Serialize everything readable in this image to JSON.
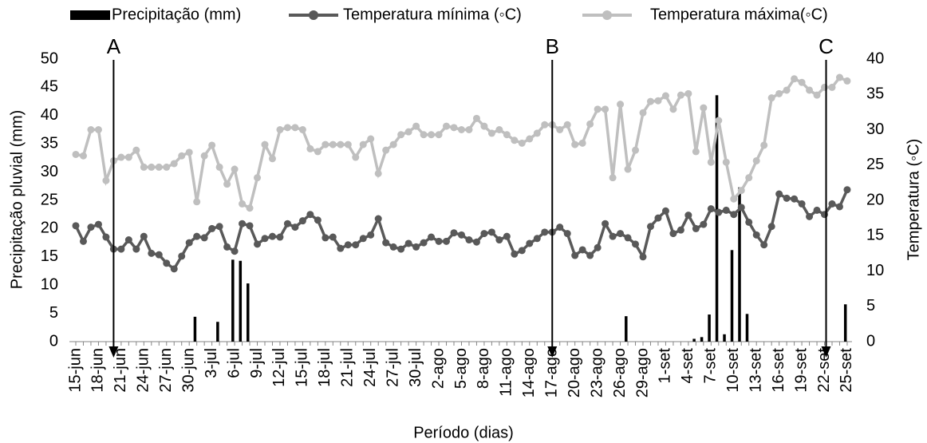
{
  "chart_data": {
    "type": "combo",
    "x_label": "Período  (dias)",
    "y_label": "Precipitação pluvial  (mm)",
    "y2_label": "Temperatura  (◦C)",
    "annotations": [
      "A",
      "B",
      "C"
    ],
    "categories": [
      "15-jun",
      null,
      null,
      "18-jun",
      null,
      null,
      "21-jun",
      null,
      null,
      "24-jun",
      null,
      null,
      "27-jun",
      null,
      null,
      "30-jun",
      null,
      null,
      "3-jul",
      null,
      null,
      "6-jul",
      null,
      null,
      "9-jul",
      null,
      null,
      "12-jul",
      null,
      null,
      "15-jul",
      null,
      null,
      "18-jul",
      null,
      null,
      "21-jul",
      null,
      null,
      "24-jul",
      null,
      null,
      "27-jul",
      null,
      null,
      "30-jul",
      null,
      null,
      "2-ago",
      null,
      null,
      "5-ago",
      null,
      null,
      "8-ago",
      null,
      null,
      "11-ago",
      null,
      null,
      "14-ago",
      null,
      null,
      "17-ago",
      null,
      null,
      "20-ago",
      null,
      null,
      "23-ago",
      null,
      null,
      "26-ago",
      null,
      null,
      "29-ago",
      null,
      null,
      "1-set",
      null,
      null,
      "4-set",
      null,
      null,
      "7-set",
      null,
      null,
      "10-set",
      null,
      null,
      "13-set",
      null,
      null,
      "16-set",
      null,
      null,
      "19-set",
      null,
      null,
      "22-set",
      null,
      null,
      "25-set"
    ],
    "ylim": [
      0,
      50
    ],
    "yticks": [
      0,
      5,
      10,
      15,
      20,
      25,
      30,
      35,
      40,
      45,
      50
    ],
    "y2lim": [
      0,
      40
    ],
    "y2ticks": [
      0,
      5,
      10,
      15,
      20,
      25,
      30,
      35,
      40
    ],
    "series": [
      {
        "name": "Precipitação (mm)",
        "type": "bar",
        "axis": "y",
        "color": "#000000",
        "values": [
          0,
          0,
          0,
          0,
          0,
          0,
          0,
          0,
          0,
          0,
          0,
          0,
          0,
          0,
          0,
          0,
          4.4,
          0,
          0,
          3.5,
          0,
          14.5,
          14.3,
          10.3,
          0,
          0,
          0,
          0,
          0,
          0,
          0,
          0,
          0,
          0,
          0,
          0,
          0,
          0,
          0,
          0,
          0,
          0,
          0,
          0,
          0,
          0,
          0,
          0,
          0,
          0,
          0,
          0,
          0,
          0,
          0,
          0,
          0,
          0,
          0,
          0,
          0,
          0,
          0,
          0,
          0,
          0,
          0,
          0,
          0,
          0,
          0,
          0,
          0,
          4.5,
          0,
          0,
          0,
          0,
          0,
          0,
          0,
          0,
          0.5,
          0.8,
          4.8,
          43.6,
          1.3,
          16.2,
          27.3,
          4.9,
          0,
          0,
          0,
          0,
          0,
          0,
          0,
          0,
          0,
          0,
          0,
          0,
          6.6
        ]
      },
      {
        "name": "Temperatura mínima (◦C)",
        "type": "line",
        "axis": "y2",
        "color": "#595959",
        "values": [
          16.4,
          14.2,
          16.2,
          16.6,
          14.8,
          13.1,
          13.1,
          14.4,
          13.1,
          14.9,
          12.5,
          12.3,
          11.1,
          10.3,
          12.1,
          14,
          14.9,
          14.7,
          16,
          16.3,
          13.4,
          12.8,
          16.7,
          16.4,
          13.8,
          14.6,
          14.9,
          14.8,
          16.7,
          16.2,
          17.1,
          18,
          17.2,
          14.7,
          14.8,
          13.2,
          13.7,
          13.7,
          14.6,
          15.1,
          17.4,
          14,
          13.4,
          13.1,
          13.9,
          13.4,
          14,
          14.8,
          14.2,
          14.2,
          15.4,
          15.1,
          14.4,
          14.1,
          15.3,
          15.5,
          14.4,
          14.9,
          12.4,
          12.9,
          13.9,
          14.6,
          15.5,
          15.5,
          16.2,
          15.3,
          12.2,
          13,
          12.2,
          13.3,
          16.7,
          14.9,
          15.3,
          14.7,
          13.8,
          12,
          16.3,
          17.5,
          18.5,
          15.3,
          15.8,
          17.9,
          16,
          16.6,
          18.8,
          18.3,
          18.6,
          18,
          19,
          16.9,
          15.1,
          13.7,
          16.3,
          20.9,
          20.3,
          20.2,
          19.5,
          17.7,
          18.6,
          18,
          19.5,
          19.1,
          21.5
        ]
      },
      {
        "name": "Temperatura máxima(◦C)",
        "type": "line",
        "axis": "y2",
        "color": "#bfbfbf",
        "values": [
          26.5,
          26.3,
          30,
          30,
          22.8,
          25.6,
          26.1,
          26.1,
          27.1,
          24.7,
          24.7,
          24.7,
          24.7,
          25.2,
          26.3,
          26.8,
          19.8,
          26.3,
          27.8,
          24.7,
          22.3,
          24.4,
          19.5,
          18.9,
          23.2,
          27.9,
          25.9,
          30,
          30.3,
          30.3,
          30,
          27.3,
          26.9,
          27.9,
          27.9,
          27.9,
          27.9,
          26.1,
          27.9,
          28.7,
          23.8,
          27.1,
          27.9,
          29.3,
          29.7,
          30.5,
          29.3,
          29.3,
          29.3,
          30.5,
          30.3,
          30,
          30,
          31.6,
          30.5,
          29.5,
          30,
          29.3,
          28.5,
          28.1,
          28.7,
          29.5,
          30.7,
          30.7,
          30,
          30.7,
          27.9,
          28.1,
          30.8,
          32.9,
          32.9,
          23.2,
          33.6,
          24.4,
          27.1,
          32.4,
          34,
          34.1,
          34.8,
          32.9,
          34.9,
          35.1,
          26.9,
          33.1,
          25.4,
          31.3,
          25.4,
          20.2,
          21.4,
          23.2,
          25.6,
          27.8,
          34.5,
          35.1,
          35.6,
          37.2,
          36.7,
          35.6,
          34.9,
          36,
          36,
          37.4,
          36.9
        ]
      }
    ]
  }
}
